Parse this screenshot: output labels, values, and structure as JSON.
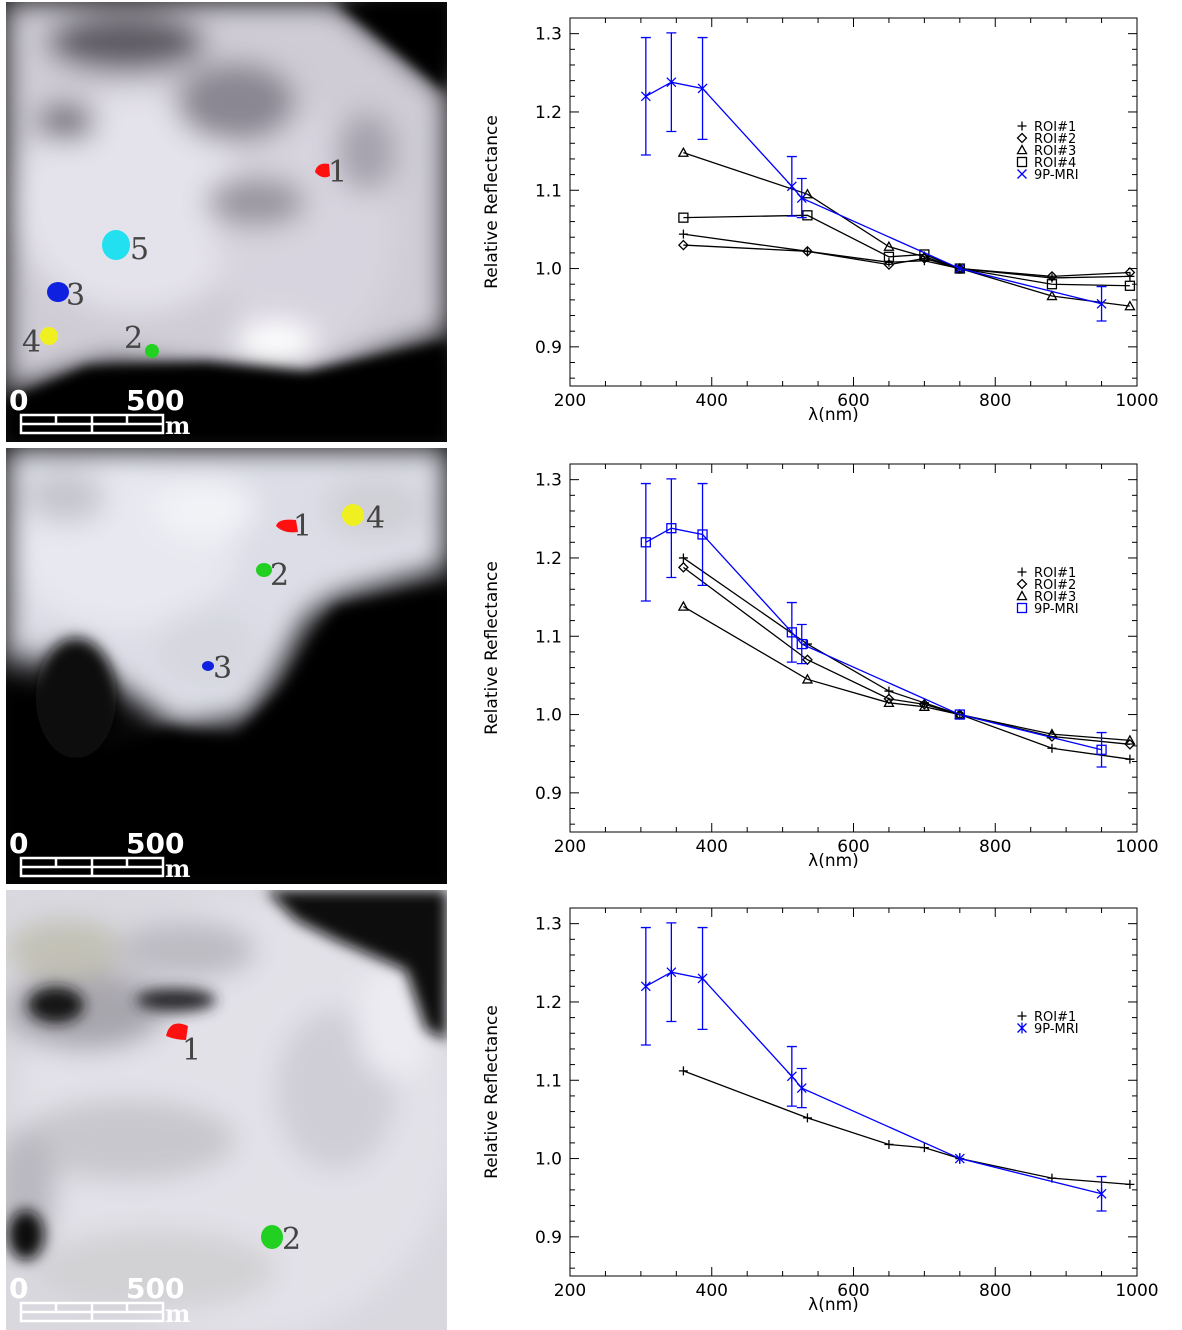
{
  "panels": [
    {
      "image": {
        "scale_start": "0",
        "scale_end": "500",
        "scale_unit": "m",
        "rois": [
          {
            "label": "1",
            "color": "#ff1010"
          },
          {
            "label": "5",
            "color": "#22e0f0"
          },
          {
            "label": "3",
            "color": "#1020e0"
          },
          {
            "label": "4",
            "color": "#f0f020"
          },
          {
            "label": "2",
            "color": "#22d022"
          }
        ]
      },
      "chart_data": {
        "type": "line",
        "xlabel": "λ(nm)",
        "ylabel": "Relative Reflectance",
        "xlim": [
          200,
          1000
        ],
        "ylim": [
          0.85,
          1.32
        ],
        "xticks": [
          200,
          400,
          600,
          800,
          1000
        ],
        "yticks": [
          0.9,
          1.0,
          1.1,
          1.2,
          1.3
        ],
        "legend_position": "right",
        "series": [
          {
            "name": "ROI#1",
            "marker": "plus",
            "color": "#000000",
            "x": [
              360,
              535,
              650,
              700,
              750,
              880,
              990
            ],
            "y": [
              1.044,
              1.022,
              1.008,
              1.01,
              1.0,
              0.988,
              0.99
            ]
          },
          {
            "name": "ROI#2",
            "marker": "diamond",
            "color": "#000000",
            "x": [
              360,
              535,
              650,
              700,
              750,
              880,
              990
            ],
            "y": [
              1.03,
              1.022,
              1.005,
              1.013,
              1.0,
              0.99,
              0.995
            ]
          },
          {
            "name": "ROI#3",
            "marker": "triangle",
            "color": "#000000",
            "x": [
              360,
              535,
              650,
              700,
              750,
              880,
              990
            ],
            "y": [
              1.148,
              1.095,
              1.028,
              1.015,
              1.0,
              0.965,
              0.952
            ]
          },
          {
            "name": "ROI#4",
            "marker": "square",
            "color": "#000000",
            "x": [
              360,
              535,
              650,
              700,
              750,
              880,
              990
            ],
            "y": [
              1.065,
              1.068,
              1.015,
              1.018,
              1.0,
              0.98,
              0.978
            ]
          },
          {
            "name": "9P-MRI",
            "marker": "x",
            "color": "#0000ff",
            "x": [
              307,
              343,
              387,
              513,
              527,
              750,
              950
            ],
            "y": [
              1.22,
              1.238,
              1.23,
              1.105,
              1.09,
              1.0,
              0.955
            ],
            "err": [
              0.075,
              0.063,
              0.065,
              0.038,
              0.025,
              0,
              0.022
            ]
          }
        ]
      }
    },
    {
      "image": {
        "scale_start": "0",
        "scale_end": "500",
        "scale_unit": "m",
        "rois": [
          {
            "label": "1",
            "color": "#ff1010"
          },
          {
            "label": "4",
            "color": "#f0f020"
          },
          {
            "label": "2",
            "color": "#22d022"
          },
          {
            "label": "3",
            "color": "#1020e0"
          }
        ]
      },
      "chart_data": {
        "type": "line",
        "xlabel": "λ(nm)",
        "ylabel": "Relative Reflectance",
        "xlim": [
          200,
          1000
        ],
        "ylim": [
          0.85,
          1.32
        ],
        "xticks": [
          200,
          400,
          600,
          800,
          1000
        ],
        "yticks": [
          0.9,
          1.0,
          1.1,
          1.2,
          1.3
        ],
        "legend_position": "right",
        "series": [
          {
            "name": "ROI#1",
            "marker": "plus",
            "color": "#000000",
            "x": [
              360,
              535,
              650,
              700,
              750,
              880,
              990
            ],
            "y": [
              1.2,
              1.09,
              1.03,
              1.015,
              1.0,
              0.957,
              0.943
            ]
          },
          {
            "name": "ROI#2",
            "marker": "diamond",
            "color": "#000000",
            "x": [
              360,
              535,
              650,
              700,
              750,
              880,
              990
            ],
            "y": [
              1.188,
              1.07,
              1.02,
              1.013,
              1.0,
              0.972,
              0.962
            ]
          },
          {
            "name": "ROI#3",
            "marker": "triangle",
            "color": "#000000",
            "x": [
              360,
              535,
              650,
              700,
              750,
              880,
              990
            ],
            "y": [
              1.138,
              1.045,
              1.015,
              1.01,
              1.0,
              0.975,
              0.967
            ]
          },
          {
            "name": "9P-MRI",
            "marker": "square",
            "color": "#0000ff",
            "x": [
              307,
              343,
              387,
              513,
              527,
              750,
              950
            ],
            "y": [
              1.22,
              1.238,
              1.23,
              1.105,
              1.09,
              1.0,
              0.955
            ],
            "err": [
              0.075,
              0.063,
              0.065,
              0.038,
              0.025,
              0,
              0.022
            ]
          }
        ]
      }
    },
    {
      "image": {
        "scale_start": "0",
        "scale_end": "500",
        "scale_unit": "m",
        "rois": [
          {
            "label": "1",
            "color": "#ff1010"
          },
          {
            "label": "2",
            "color": "#22d022"
          }
        ]
      },
      "chart_data": {
        "type": "line",
        "xlabel": "λ(nm)",
        "ylabel": "Relative Reflectance",
        "xlim": [
          200,
          1000
        ],
        "ylim": [
          0.85,
          1.32
        ],
        "xticks": [
          200,
          400,
          600,
          800,
          1000
        ],
        "yticks": [
          0.9,
          1.0,
          1.1,
          1.2,
          1.3
        ],
        "legend_position": "right",
        "series": [
          {
            "name": "ROI#1",
            "marker": "plus",
            "color": "#000000",
            "x": [
              360,
              535,
              650,
              700,
              750,
              880,
              990
            ],
            "y": [
              1.112,
              1.052,
              1.018,
              1.014,
              1.0,
              0.975,
              0.967
            ]
          },
          {
            "name": "9P-MRI",
            "marker": "asterisk",
            "color": "#0000ff",
            "x": [
              307,
              343,
              387,
              513,
              527,
              750,
              950
            ],
            "y": [
              1.22,
              1.238,
              1.23,
              1.105,
              1.09,
              1.0,
              0.955
            ],
            "err": [
              0.075,
              0.063,
              0.065,
              0.038,
              0.025,
              0,
              0.022
            ]
          }
        ]
      }
    }
  ]
}
